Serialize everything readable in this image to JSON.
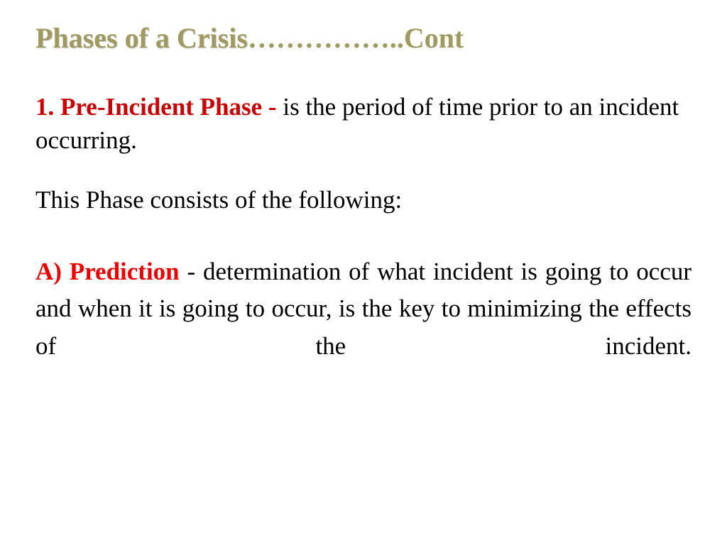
{
  "title": {
    "main": "Phases of a Crisis",
    "dots": "……………..",
    "cont": "Cont"
  },
  "paragraph1": {
    "highlight": " 1. Pre-Incident Phase - ",
    "rest": "is the period of time prior to an incident occurring."
  },
  "paragraph2": "This Phase consists of the following:",
  "paragraph3": {
    "highlight": "  A) Prediction ",
    "rest": "- determination of what incident is going to occur and when it is going to occur, is the key to minimizing the effects of the incident."
  },
  "colors": {
    "olive": "#9f9a5f",
    "darkred": "#cc0000",
    "red": "#ee0000",
    "black": "#000000",
    "background": "#ffffff"
  },
  "typography": {
    "family": "Times New Roman",
    "title_size": 40,
    "body_size": 35
  }
}
